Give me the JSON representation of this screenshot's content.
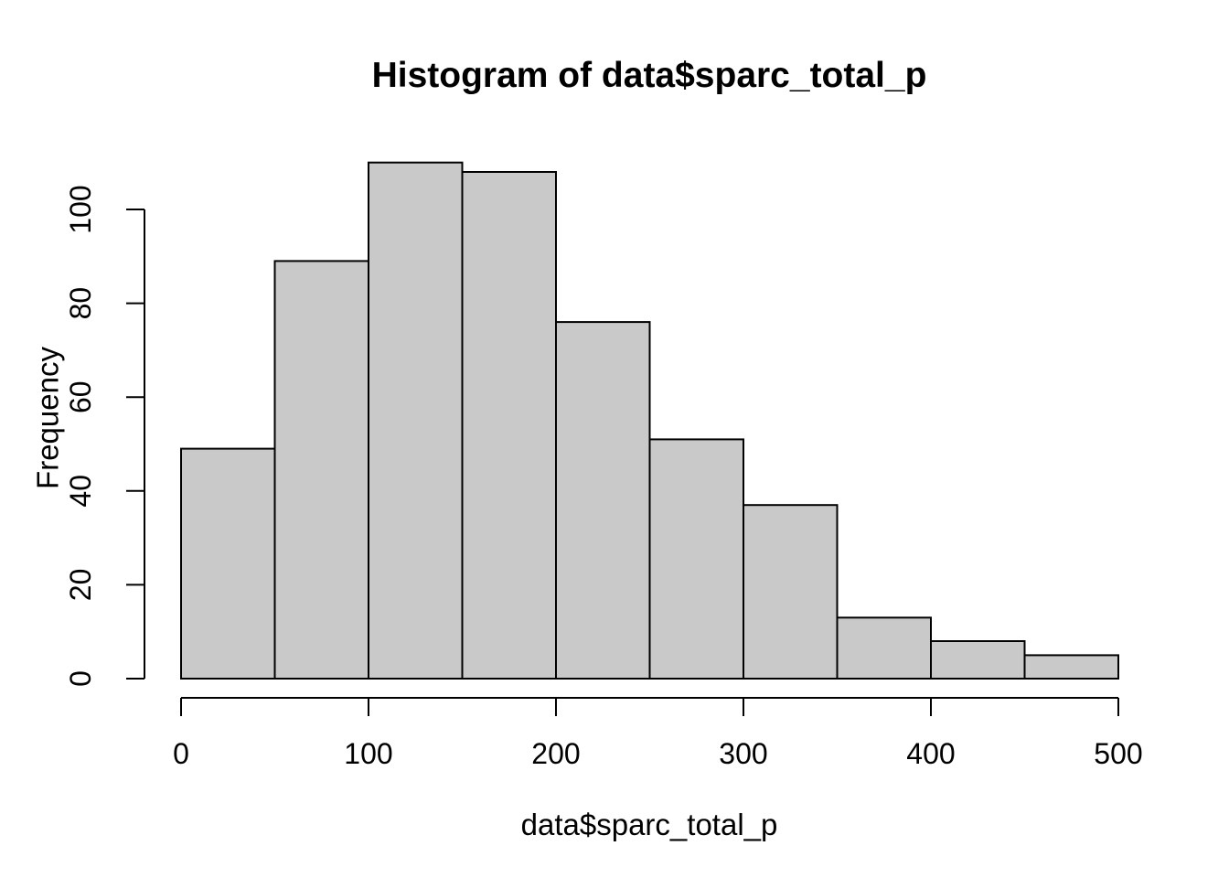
{
  "chart_data": {
    "type": "bar",
    "subtype": "histogram",
    "title": "Histogram of data$sparc_total_p",
    "xlabel": "data$sparc_total_p",
    "ylabel": "Frequency",
    "bin_width": 50,
    "bin_edges": [
      0,
      50,
      100,
      150,
      200,
      250,
      300,
      350,
      400,
      450,
      500
    ],
    "values": [
      49,
      89,
      110,
      108,
      76,
      51,
      37,
      13,
      8,
      5
    ],
    "x_ticks": [
      0,
      100,
      200,
      300,
      400,
      500
    ],
    "y_ticks": [
      0,
      20,
      40,
      60,
      80,
      100
    ],
    "xlim": [
      0,
      500
    ],
    "ylim": [
      0,
      110
    ],
    "grid": "off",
    "legend": "none",
    "colors": {
      "bar_fill": "#c9c9c9",
      "bar_stroke": "#000000",
      "axis": "#000000",
      "background": "#ffffff"
    }
  }
}
